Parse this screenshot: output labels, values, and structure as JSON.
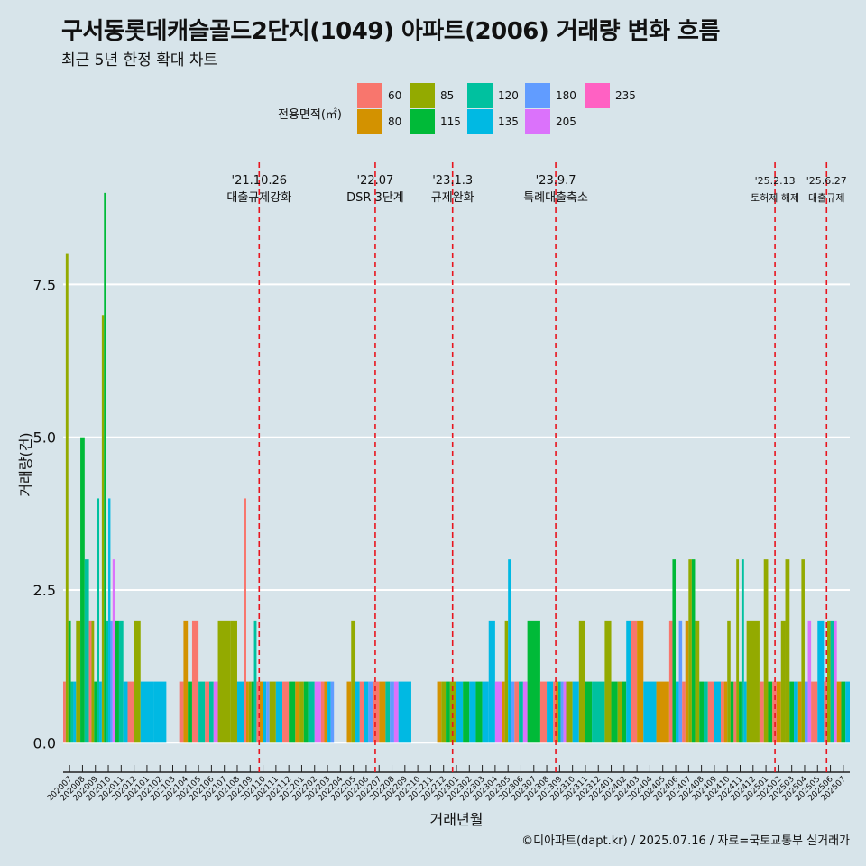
{
  "header": {
    "title": "구서동롯데캐슬골드2단지(1049) 아파트(2006) 거래량 변화 흐름",
    "subtitle": "최근 5년 한정 확대 차트"
  },
  "legend": {
    "title": "전용면적(㎡)",
    "items": [
      {
        "label": "60",
        "color": "#f8766d"
      },
      {
        "label": "80",
        "color": "#d39200"
      },
      {
        "label": "85",
        "color": "#93aa00"
      },
      {
        "label": "115",
        "color": "#00ba38"
      },
      {
        "label": "120",
        "color": "#00c19f"
      },
      {
        "label": "135",
        "color": "#00b9e3"
      },
      {
        "label": "180",
        "color": "#619cff"
      },
      {
        "label": "205",
        "color": "#db72fb"
      },
      {
        "label": "235",
        "color": "#ff61c3"
      }
    ]
  },
  "caption": "©디아파트(dapt.kr) / 2025.07.16 / 자료=국토교통부 실거래가",
  "chart_data": {
    "type": "bar",
    "xlabel": "거래년월",
    "ylabel": "거래량(건)",
    "ylim": [
      -0.35,
      9.5
    ],
    "yticks": [
      0,
      2.5,
      5,
      7.5
    ],
    "ytick_labels": [
      "0.0",
      "2.5",
      "5.0",
      "7.5"
    ],
    "categories": [
      "202007",
      "202008",
      "202009",
      "202010",
      "202011",
      "202012",
      "202101",
      "202102",
      "202103",
      "202104",
      "202105",
      "202106",
      "202107",
      "202108",
      "202109",
      "202110",
      "202111",
      "202112",
      "202201",
      "202202",
      "202203",
      "202204",
      "202205",
      "202206",
      "202207",
      "202208",
      "202209",
      "202210",
      "202211",
      "202212",
      "202301",
      "202302",
      "202303",
      "202304",
      "202305",
      "202306",
      "202307",
      "202308",
      "202309",
      "202310",
      "202311",
      "202312",
      "202401",
      "202402",
      "202403",
      "202404",
      "202405",
      "202406",
      "202407",
      "202408",
      "202409",
      "202410",
      "202411",
      "202412",
      "202501",
      "202502",
      "202503",
      "202504",
      "202505",
      "202506",
      "202507"
    ],
    "series": [
      {
        "name": "60",
        "values": [
          1,
          0,
          2,
          0,
          0,
          1,
          0,
          0,
          0,
          1,
          2,
          1,
          0,
          0,
          4,
          1,
          0,
          1,
          0,
          0,
          1,
          0,
          0,
          1,
          1,
          0,
          0,
          0,
          0,
          0,
          0,
          0,
          0,
          0,
          0,
          1,
          0,
          1,
          1,
          0,
          0,
          0,
          0,
          0,
          2,
          0,
          0,
          2,
          1,
          0,
          1,
          1,
          1,
          0,
          1,
          1,
          0,
          0,
          1,
          1,
          0
        ]
      },
      {
        "name": "80",
        "values": [
          0,
          0,
          0,
          0,
          0,
          0,
          0,
          0,
          0,
          2,
          0,
          0,
          0,
          0,
          1,
          1,
          0,
          0,
          1,
          0,
          1,
          0,
          1,
          0,
          1,
          0,
          0,
          0,
          0,
          1,
          0,
          0,
          0,
          0,
          1,
          0,
          0,
          0,
          1,
          0,
          0,
          0,
          0,
          0,
          2,
          0,
          1,
          0,
          2,
          0,
          0,
          1,
          0,
          0,
          0,
          1,
          0,
          1,
          0,
          0,
          1
        ]
      },
      {
        "name": "85",
        "values": [
          8,
          2,
          2,
          7,
          0,
          2,
          0,
          0,
          0,
          0,
          0,
          0,
          2,
          2,
          1,
          0,
          1,
          0,
          1,
          0,
          0,
          0,
          2,
          0,
          0,
          0,
          0,
          0,
          0,
          1,
          1,
          0,
          0,
          0,
          2,
          0,
          0,
          0,
          0,
          1,
          2,
          0,
          2,
          1,
          0,
          0,
          0,
          0,
          3,
          2,
          0,
          2,
          3,
          2,
          3,
          2,
          3,
          3,
          0,
          2,
          0
        ]
      },
      {
        "name": "115",
        "values": [
          2,
          5,
          1,
          9,
          2,
          0,
          0,
          0,
          0,
          1,
          0,
          0,
          0,
          0,
          1,
          0,
          0,
          1,
          1,
          0,
          0,
          0,
          0,
          0,
          0,
          0,
          0,
          0,
          0,
          1,
          0,
          1,
          1,
          0,
          0,
          0,
          2,
          0,
          0,
          0,
          1,
          0,
          1,
          1,
          0,
          0,
          0,
          3,
          3,
          1,
          0,
          1,
          1,
          0,
          1,
          0,
          1,
          0,
          0,
          0,
          1
        ]
      },
      {
        "name": "120",
        "values": [
          1,
          3,
          4,
          2,
          2,
          0,
          0,
          0,
          0,
          0,
          1,
          1,
          0,
          0,
          2,
          0,
          0,
          0,
          0,
          1,
          0,
          0,
          0,
          0,
          0,
          1,
          0,
          0,
          0,
          0,
          0,
          0,
          0,
          0,
          0,
          1,
          0,
          0,
          1,
          0,
          0,
          1,
          0,
          0,
          0,
          0,
          0,
          0,
          0,
          1,
          0,
          0,
          3,
          0,
          0,
          0,
          0,
          0,
          0,
          2,
          0
        ]
      },
      {
        "name": "135",
        "values": [
          1,
          0,
          1,
          4,
          1,
          0,
          1,
          1,
          0,
          0,
          0,
          0,
          0,
          1,
          0,
          1,
          1,
          0,
          0,
          0,
          1,
          0,
          1,
          1,
          0,
          0,
          1,
          0,
          0,
          0,
          1,
          1,
          1,
          2,
          3,
          0,
          0,
          1,
          0,
          1,
          0,
          0,
          0,
          2,
          0,
          1,
          0,
          1,
          0,
          0,
          1,
          0,
          1,
          0,
          0,
          0,
          1,
          0,
          2,
          0,
          1
        ]
      },
      {
        "name": "180",
        "values": [
          0,
          0,
          0,
          2,
          0,
          0,
          0,
          0,
          0,
          0,
          0,
          0,
          0,
          0,
          0,
          1,
          0,
          0,
          0,
          0,
          1,
          0,
          0,
          1,
          0,
          1,
          0,
          0,
          0,
          0,
          0,
          0,
          0,
          0,
          1,
          0,
          0,
          0,
          1,
          0,
          0,
          0,
          0,
          0,
          0,
          0,
          0,
          2,
          0,
          0,
          0,
          0,
          0,
          0,
          0,
          0,
          0,
          1,
          0,
          0,
          0
        ]
      },
      {
        "name": "205",
        "values": [
          0,
          0,
          0,
          3,
          0,
          0,
          0,
          0,
          0,
          0,
          0,
          1,
          0,
          0,
          0,
          0,
          0,
          0,
          0,
          1,
          0,
          0,
          0,
          0,
          0,
          1,
          0,
          0,
          0,
          0,
          0,
          0,
          0,
          1,
          0,
          1,
          0,
          0,
          1,
          0,
          0,
          0,
          0,
          0,
          0,
          0,
          0,
          0,
          0,
          0,
          0,
          0,
          0,
          0,
          0,
          0,
          0,
          2,
          0,
          2,
          0
        ]
      },
      {
        "name": "235",
        "values": [
          0,
          0,
          0,
          0,
          0,
          0,
          0,
          0,
          0,
          0,
          0,
          0,
          0,
          0,
          0,
          0,
          0,
          0,
          0,
          0,
          0,
          0,
          0,
          0,
          0,
          0,
          0,
          0,
          0,
          0,
          0,
          0,
          0,
          0,
          0,
          0,
          0,
          0,
          0,
          0,
          0,
          0,
          0,
          0,
          0,
          0,
          0,
          0,
          0,
          0,
          0,
          0,
          0,
          0,
          0,
          0,
          0,
          0,
          0,
          0,
          0
        ]
      }
    ],
    "events": [
      {
        "index": 15.2,
        "date": "'21.10.26",
        "label": "대출규제강화"
      },
      {
        "index": 24.2,
        "date": "'22.07",
        "label": "DSR 3단계"
      },
      {
        "index": 30.2,
        "date": "'23.1.3",
        "label": "규제완화"
      },
      {
        "index": 38.2,
        "date": "'23.9.7",
        "label": "특례대출축소"
      },
      {
        "index": 55.2,
        "date": "'25.2.13",
        "label": "토허제 해제"
      },
      {
        "index": 59.2,
        "date": "'25.6.27",
        "label": "대출규제"
      }
    ]
  }
}
